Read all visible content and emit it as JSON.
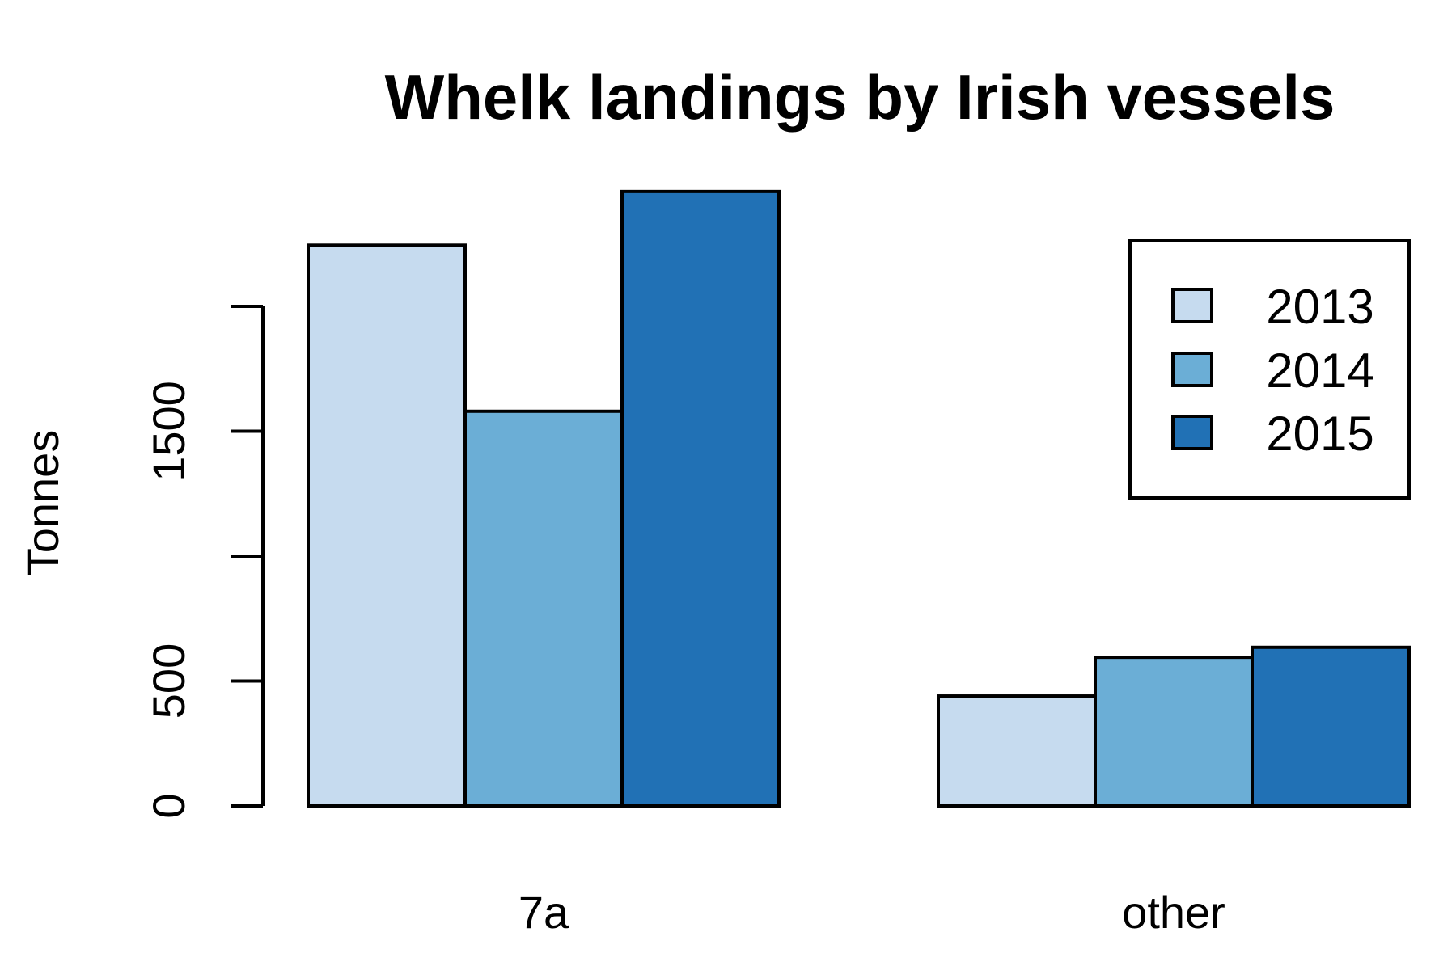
{
  "chart_data": {
    "type": "bar",
    "title": "Whelk landings by Irish vessels",
    "xlabel": "",
    "ylabel": "Tonnes",
    "categories": [
      "7a",
      "other"
    ],
    "series": [
      {
        "name": "2013",
        "color": "#C6DBEF",
        "values": [
          2245,
          440
        ]
      },
      {
        "name": "2014",
        "color": "#6BAED6",
        "values": [
          1580,
          595
        ]
      },
      {
        "name": "2015",
        "color": "#2171B5",
        "values": [
          2460,
          635
        ]
      }
    ],
    "yticks": [
      0,
      500,
      1000,
      1500,
      2000
    ],
    "ytick_labels": [
      "0",
      "500",
      "",
      "1500",
      ""
    ],
    "ylim": [
      0,
      2500
    ],
    "grid": false,
    "legend_position": "top-right"
  }
}
